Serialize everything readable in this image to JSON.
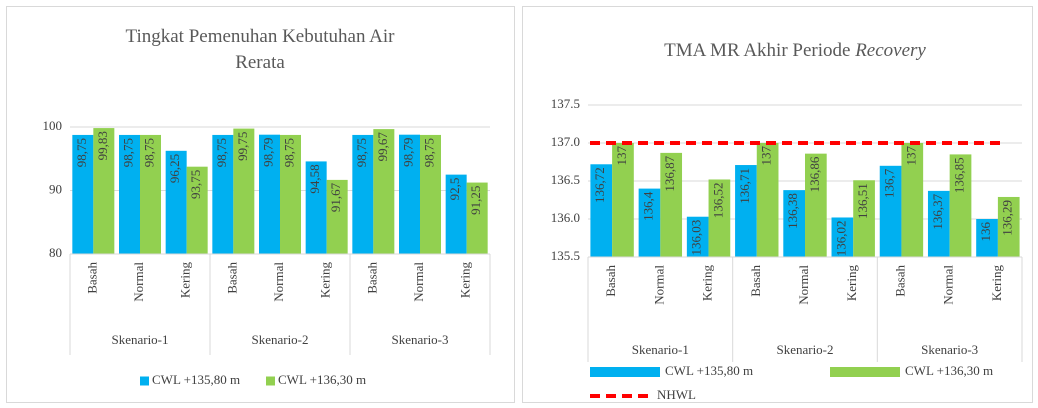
{
  "chart_data": [
    {
      "type": "bar",
      "title": "Tingkat Pemenuhan Kebutuhan Air Rerata",
      "groups": [
        {
          "name": "Skenario-1",
          "categories": [
            "Basah",
            "Normal",
            "Kering"
          ]
        },
        {
          "name": "Skenario-2",
          "categories": [
            "Basah",
            "Normal",
            "Kering"
          ]
        },
        {
          "name": "Skenario-3",
          "categories": [
            "Basah",
            "Normal",
            "Kering"
          ]
        }
      ],
      "series": [
        {
          "name": "CWL +135,80 m",
          "color": "#00b0f0",
          "values": [
            98.75,
            98.75,
            96.25,
            98.75,
            98.79,
            94.58,
            98.75,
            98.79,
            92.5
          ],
          "value_labels": [
            "98,75",
            "98,75",
            "96,25",
            "98,75",
            "98,79",
            "94,58",
            "98,75",
            "98,79",
            "92,5"
          ]
        },
        {
          "name": "CWL +136,30 m",
          "color": "#92d050",
          "values": [
            99.83,
            98.75,
            93.75,
            99.75,
            98.75,
            91.67,
            99.67,
            98.75,
            91.25
          ],
          "value_labels": [
            "99,83",
            "98,75",
            "93,75",
            "99,75",
            "98,75",
            "91,67",
            "99,67",
            "98,75",
            "91,25"
          ]
        }
      ],
      "ylim": [
        80,
        100
      ],
      "yticks": [
        80,
        90,
        100
      ],
      "grid": true,
      "legend": "bottom"
    },
    {
      "type": "bar",
      "title": "TMA MR Akhir Periode",
      "title_emphasis": "Recovery",
      "groups": [
        {
          "name": "Skenario-1",
          "categories": [
            "Basah",
            "Normal",
            "Kering"
          ]
        },
        {
          "name": "Skenario-2",
          "categories": [
            "Basah",
            "Normal",
            "Kering"
          ]
        },
        {
          "name": "Skenario-3",
          "categories": [
            "Basah",
            "Normal",
            "Kering"
          ]
        }
      ],
      "series": [
        {
          "name": "CWL +135,80 m",
          "color": "#00b0f0",
          "values": [
            136.72,
            136.4,
            136.03,
            136.71,
            136.38,
            136.02,
            136.7,
            136.37,
            136
          ],
          "value_labels": [
            "136,72",
            "136,4",
            "136,03",
            "136,71",
            "136,38",
            "136,02",
            "136,7",
            "136,37",
            "136"
          ]
        },
        {
          "name": "CWL +136,30 m",
          "color": "#92d050",
          "values": [
            137,
            136.87,
            136.52,
            137,
            136.86,
            136.51,
            137,
            136.85,
            136.29
          ],
          "value_labels": [
            "137",
            "136,87",
            "136,52",
            "137",
            "136,86",
            "136,51",
            "137",
            "136,85",
            "136,29"
          ]
        }
      ],
      "reference_lines": [
        {
          "name": "NHWL",
          "value": 137,
          "color": "#ff0000"
        }
      ],
      "ylim": [
        135.5,
        137.5
      ],
      "yticks": [
        135.5,
        {
          "value": 136,
          "label": "136.0"
        },
        136.5,
        {
          "value": 137,
          "label": "137.0"
        },
        137.5
      ],
      "grid": true,
      "legend": "bottom"
    }
  ]
}
